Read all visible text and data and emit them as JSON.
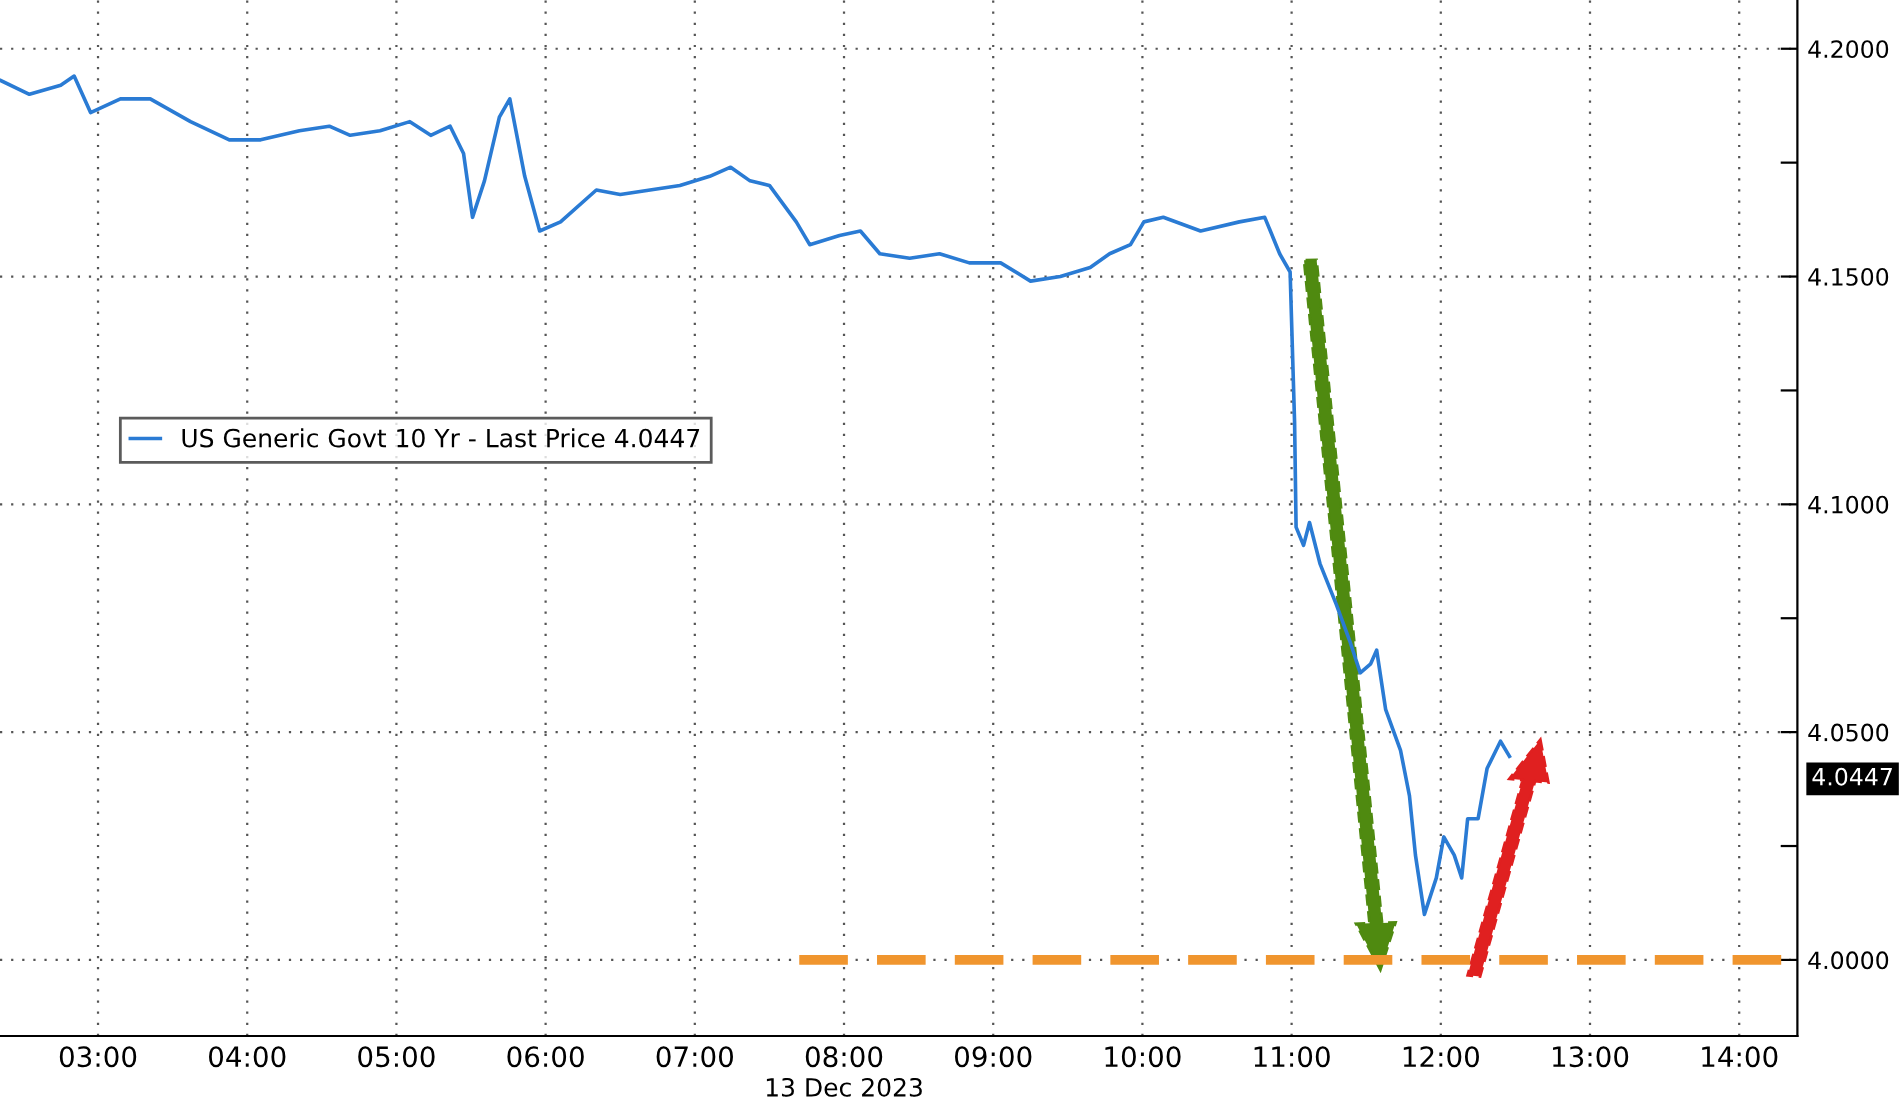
{
  "chart_data": {
    "type": "line",
    "xlabel": "13 Dec 2023",
    "series": [
      {
        "name": "US Generic Govt 10 Yr - Last Price 4.0447",
        "color": "#2a7bd4",
        "x": [
          2.35,
          2.54,
          2.75,
          2.84,
          2.95,
          3.15,
          3.35,
          3.62,
          3.88,
          4.09,
          4.35,
          4.55,
          4.69,
          4.89,
          5.09,
          5.23,
          5.36,
          5.45,
          5.51,
          5.59,
          5.69,
          5.76,
          5.86,
          5.96,
          6.1,
          6.34,
          6.5,
          6.7,
          6.9,
          7.1,
          7.24,
          7.37,
          7.5,
          7.68,
          7.77,
          7.97,
          8.11,
          8.24,
          8.44,
          8.64,
          8.84,
          9.05,
          9.25,
          9.45,
          9.65,
          9.78,
          9.92,
          10.01,
          10.14,
          10.39,
          10.65,
          10.82,
          10.92,
          10.99,
          11.02,
          11.03,
          11.08,
          11.12,
          11.19,
          11.3,
          11.39,
          11.46,
          11.53,
          11.57,
          11.63,
          11.73,
          11.79,
          11.83,
          11.89,
          11.97,
          12.02,
          12.09,
          12.14,
          12.18,
          12.25,
          12.31,
          12.4,
          12.46
        ],
        "values": [
          4.193,
          4.19,
          4.192,
          4.194,
          4.186,
          4.189,
          4.189,
          4.184,
          4.18,
          4.18,
          4.182,
          4.183,
          4.181,
          4.182,
          4.184,
          4.181,
          4.183,
          4.177,
          4.163,
          4.171,
          4.185,
          4.189,
          4.172,
          4.16,
          4.162,
          4.169,
          4.168,
          4.169,
          4.17,
          4.172,
          4.174,
          4.171,
          4.17,
          4.162,
          4.157,
          4.159,
          4.16,
          4.155,
          4.154,
          4.155,
          4.153,
          4.153,
          4.149,
          4.15,
          4.152,
          4.155,
          4.157,
          4.162,
          4.163,
          4.16,
          4.162,
          4.163,
          4.155,
          4.151,
          4.118,
          4.095,
          4.091,
          4.096,
          4.087,
          4.078,
          4.07,
          4.063,
          4.065,
          4.068,
          4.055,
          4.046,
          4.036,
          4.023,
          4.01,
          4.018,
          4.027,
          4.023,
          4.018,
          4.031,
          4.031,
          4.042,
          4.048,
          4.0447
        ]
      },
      {
        "type": "line",
        "color": "#f0952e",
        "line_style": "dashed",
        "x": [
          7.7,
          14.39
        ],
        "values": [
          4.0,
          4.0
        ]
      }
    ],
    "xlim": [
      2.343,
      14.39
    ],
    "ylim": [
      3.9833,
      4.2107
    ],
    "xticks": [
      {
        "value": 3,
        "label": "03:00"
      },
      {
        "value": 4,
        "label": "04:00"
      },
      {
        "value": 5,
        "label": "05:00"
      },
      {
        "value": 6,
        "label": "06:00"
      },
      {
        "value": 7,
        "label": "07:00"
      },
      {
        "value": 8,
        "label": "08:00"
      },
      {
        "value": 9,
        "label": "09:00"
      },
      {
        "value": 10,
        "label": "10:00"
      },
      {
        "value": 11,
        "label": "11:00"
      },
      {
        "value": 12,
        "label": "12:00"
      },
      {
        "value": 13,
        "label": "13:00"
      },
      {
        "value": 14,
        "label": "14:00"
      }
    ],
    "yticks": [
      {
        "value": 4.0,
        "label": "4.0000"
      },
      {
        "value": 4.025,
        "label": null
      },
      {
        "value": 4.05,
        "label": "4.0500"
      },
      {
        "value": 4.075,
        "label": null
      },
      {
        "value": 4.1,
        "label": "4.1000"
      },
      {
        "value": 4.125,
        "label": null
      },
      {
        "value": 4.15,
        "label": "4.1500"
      },
      {
        "value": 4.175,
        "label": null
      },
      {
        "value": 4.2,
        "label": "4.2000"
      }
    ],
    "annotations": [
      "4.0447"
    ],
    "grid": true,
    "legend": "left",
    "line_style": "solid",
    "marker": "none"
  }
}
